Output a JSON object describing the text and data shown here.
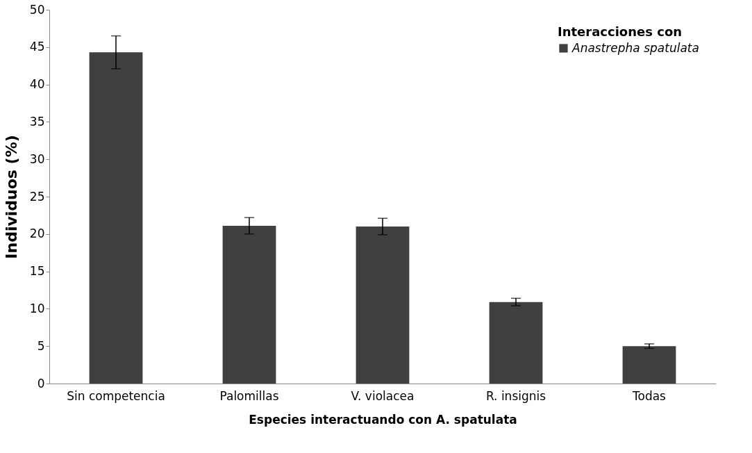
{
  "chart_data": {
    "type": "bar",
    "xlabel": "Especies interactuando con A. spatulata",
    "ylabel": "Individuos (%)",
    "legend_title": "Interacciones con",
    "categories": [
      "Sin competencia",
      "Palomillas",
      "V. violacea",
      "R. insignis",
      "Todas"
    ],
    "series": [
      {
        "name": "Anastrepha spatulata",
        "color": "#404040",
        "values": [
          44.3,
          21.1,
          21.0,
          10.9,
          5.0
        ],
        "errors": [
          2.2,
          1.1,
          1.1,
          0.5,
          0.3
        ]
      }
    ],
    "ylim": [
      0,
      50
    ],
    "yticks": [
      0,
      5,
      10,
      15,
      20,
      25,
      30,
      35,
      40,
      45,
      50
    ],
    "grid": false,
    "legend": "top right"
  }
}
